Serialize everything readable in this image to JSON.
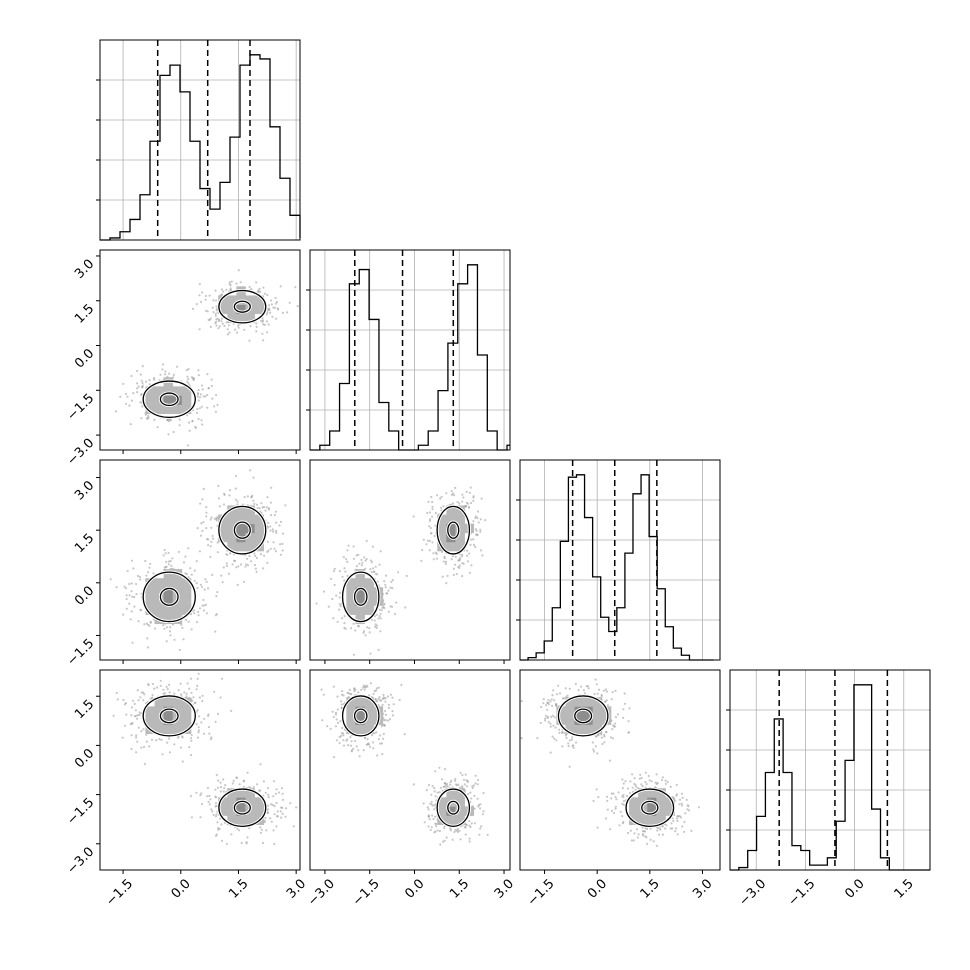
{
  "chart_data": {
    "type": "corner",
    "description_note": "",
    "n_dims": 4,
    "axis_ranges": [
      [
        -2.1,
        3.1
      ],
      [
        -3.5,
        3.2
      ],
      [
        -2.2,
        3.5
      ],
      [
        -3.8,
        2.3
      ]
    ],
    "ticks": [
      [
        -1.5,
        0.0,
        1.5,
        3.0
      ],
      [
        -3.0,
        -1.5,
        0.0,
        1.5,
        3.0
      ],
      [
        -1.5,
        0.0,
        1.5,
        3.0
      ],
      [
        -3.0,
        -1.5,
        0.0,
        1.5
      ]
    ],
    "tick_labels": [
      [
        "−1.5",
        "0.0",
        "1.5",
        "3.0"
      ],
      [
        "−3.0",
        "−1.5",
        "0.0",
        "1.5",
        "3.0"
      ],
      [
        "−1.5",
        "0.0",
        "1.5",
        "3.0"
      ],
      [
        "−3.0",
        "−1.5",
        "0.0",
        "1.5"
      ]
    ],
    "quantiles": [
      [
        -0.6,
        0.7,
        1.8
      ],
      [
        -2.0,
        -0.4,
        1.3
      ],
      [
        -0.7,
        0.5,
        1.7
      ],
      [
        -2.3,
        -0.6,
        1.0
      ]
    ],
    "histograms": [
      {
        "bin_start": -2.1,
        "bin_width": 0.26,
        "counts": [
          0,
          1,
          4,
          10,
          22,
          48,
          80,
          85,
          72,
          48,
          25,
          15,
          28,
          50,
          85,
          90,
          88,
          55,
          30,
          12,
          4,
          1
        ]
      },
      {
        "bin_start": -3.5,
        "bin_width": 0.33,
        "counts": [
          0,
          2,
          8,
          28,
          70,
          76,
          55,
          20,
          8,
          0,
          0,
          2,
          8,
          25,
          45,
          70,
          78,
          40,
          8,
          0,
          2
        ]
      },
      {
        "bin_start": -2.2,
        "bin_width": 0.23,
        "counts": [
          0,
          1,
          3,
          8,
          22,
          50,
          77,
          78,
          60,
          35,
          18,
          12,
          22,
          45,
          70,
          78,
          52,
          30,
          14,
          5,
          2,
          0,
          0,
          0
        ]
      },
      {
        "bin_start": -3.8,
        "bin_width": 0.27,
        "counts": [
          0,
          1,
          8,
          22,
          40,
          62,
          40,
          10,
          8,
          2,
          2,
          5,
          20,
          45,
          76,
          76,
          25,
          5,
          0,
          0,
          0,
          0,
          0
        ]
      }
    ],
    "modes": [
      {
        "means": [
          -0.3,
          -1.8,
          -0.4,
          0.9
        ],
        "sds": [
          0.5,
          0.45,
          0.52,
          0.45
        ],
        "weight": 0.5
      },
      {
        "means": [
          1.6,
          1.3,
          1.5,
          -1.9
        ],
        "sds": [
          0.45,
          0.4,
          0.5,
          0.42
        ],
        "weight": 0.5
      }
    ],
    "contour_levels": [
      0.4,
      0.9,
      1.5,
      2.1
    ],
    "grid": true,
    "style": {
      "line_color": "#000000",
      "quantile_line_style": "dashed",
      "point_color": "#999999",
      "grid_color": "#b0b0b0",
      "density_shades": [
        "#b9b9b9",
        "#8d8d8d",
        "#5c5c5c",
        "#2c2c2c",
        "#000000"
      ]
    },
    "labels": []
  }
}
